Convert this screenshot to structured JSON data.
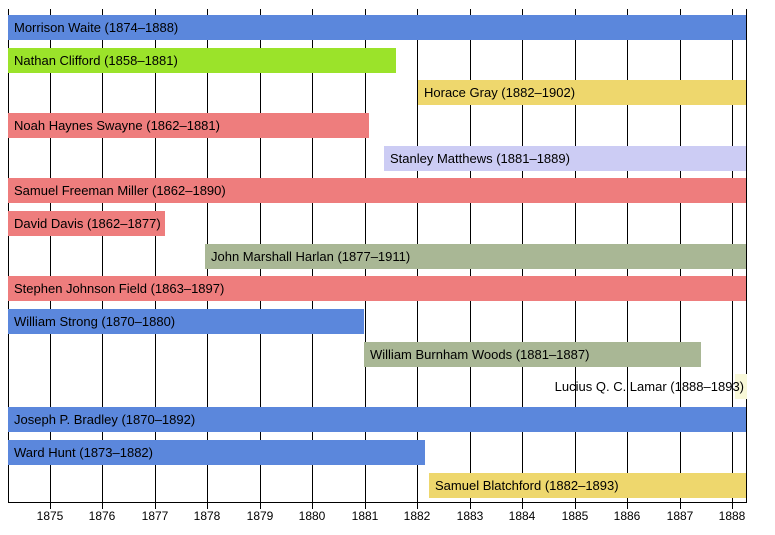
{
  "chart_data": {
    "type": "gantt",
    "description": "Timeline of U.S. Supreme Court justices' tenures, 1875-1888 window",
    "colors": {
      "blue": "#5b87dc",
      "green": "#9be32a",
      "yellow": "#eed76d",
      "red": "#ee7d7d",
      "lavender": "#ccccf4",
      "sage": "#a9b795",
      "cream": "#f8f8d8",
      "gridline": "#000000",
      "text": "#000000",
      "background": "#ffffff"
    },
    "x_axis": {
      "tick_years": [
        1875,
        1876,
        1877,
        1878,
        1879,
        1880,
        1881,
        1882,
        1883,
        1884,
        1885,
        1886,
        1887,
        1888
      ],
      "tick_labels": [
        "1875",
        "1876",
        "1877",
        "1878",
        "1879",
        "1880",
        "1881",
        "1882",
        "1883",
        "1884",
        "1885",
        "1886",
        "1887",
        "1888"
      ],
      "window_start": 1874.2,
      "window_end": 1888.27,
      "grid": true
    },
    "bars": [
      {
        "justice": "Morrison Waite",
        "term_start": 1874,
        "term_end": 1888,
        "label": "Morrison Waite (1874–1888)",
        "draw_start": 1874.2,
        "draw_end": 1888.27,
        "color_key": "blue",
        "label_inside": true
      },
      {
        "justice": "Nathan Clifford",
        "term_start": 1858,
        "term_end": 1881,
        "label": "Nathan Clifford (1858–1881)",
        "draw_start": 1874.2,
        "draw_end": 1881.6,
        "color_key": "green",
        "label_inside": true
      },
      {
        "justice": "Horace Gray",
        "term_start": 1882,
        "term_end": 1902,
        "label": "Horace Gray (1882–1902)",
        "draw_start": 1882.02,
        "draw_end": 1888.27,
        "color_key": "yellow",
        "label_inside": true
      },
      {
        "justice": "Noah Haynes Swayne",
        "term_start": 1862,
        "term_end": 1881,
        "label": "Noah Haynes Swayne (1862–1881)",
        "draw_start": 1874.2,
        "draw_end": 1881.08,
        "color_key": "red",
        "label_inside": true
      },
      {
        "justice": "Stanley Matthews",
        "term_start": 1881,
        "term_end": 1889,
        "label": "Stanley Matthews (1881–1889)",
        "draw_start": 1881.37,
        "draw_end": 1888.27,
        "color_key": "lavender",
        "label_inside": true
      },
      {
        "justice": "Samuel Freeman Miller",
        "term_start": 1862,
        "term_end": 1890,
        "label": "Samuel Freeman Miller (1862–1890)",
        "draw_start": 1874.2,
        "draw_end": 1888.27,
        "color_key": "red",
        "label_inside": true
      },
      {
        "justice": "David Davis",
        "term_start": 1862,
        "term_end": 1877,
        "label": "David Davis (1862–1877)",
        "draw_start": 1874.2,
        "draw_end": 1877.2,
        "color_key": "red",
        "label_inside": true
      },
      {
        "justice": "John Marshall Harlan",
        "term_start": 1877,
        "term_end": 1911,
        "label": "John Marshall Harlan (1877–1911)",
        "draw_start": 1877.95,
        "draw_end": 1888.27,
        "color_key": "sage",
        "label_inside": true
      },
      {
        "justice": "Stephen Johnson Field",
        "term_start": 1863,
        "term_end": 1897,
        "label": "Stephen Johnson Field (1863–1897)",
        "draw_start": 1874.2,
        "draw_end": 1888.27,
        "color_key": "red",
        "label_inside": true
      },
      {
        "justice": "William Strong",
        "term_start": 1870,
        "term_end": 1880,
        "label": "William Strong (1870–1880)",
        "draw_start": 1874.2,
        "draw_end": 1880.98,
        "color_key": "blue",
        "label_inside": true
      },
      {
        "justice": "William Burnham Woods",
        "term_start": 1881,
        "term_end": 1887,
        "label": "William Burnham Woods (1881–1887)",
        "draw_start": 1880.98,
        "draw_end": 1887.4,
        "color_key": "sage",
        "label_inside": true
      },
      {
        "justice": "Lucius Q. C. Lamar",
        "term_start": 1888,
        "term_end": 1893,
        "label": "Lucius Q. C. Lamar (1888–1893)",
        "draw_start": 1888.05,
        "draw_end": 1888.27,
        "color_key": "cream",
        "label_inside": false
      },
      {
        "justice": "Joseph P. Bradley",
        "term_start": 1870,
        "term_end": 1892,
        "label": "Joseph P. Bradley (1870–1892)",
        "draw_start": 1874.2,
        "draw_end": 1888.27,
        "color_key": "blue",
        "label_inside": true
      },
      {
        "justice": "Ward Hunt",
        "term_start": 1873,
        "term_end": 1882,
        "label": "Ward Hunt (1873–1882)",
        "draw_start": 1874.2,
        "draw_end": 1882.15,
        "color_key": "blue",
        "label_inside": true
      },
      {
        "justice": "Samuel Blatchford",
        "term_start": 1882,
        "term_end": 1893,
        "label": "Samuel Blatchford (1882–1893)",
        "draw_start": 1882.22,
        "draw_end": 1888.27,
        "color_key": "yellow",
        "label_inside": true
      }
    ]
  }
}
